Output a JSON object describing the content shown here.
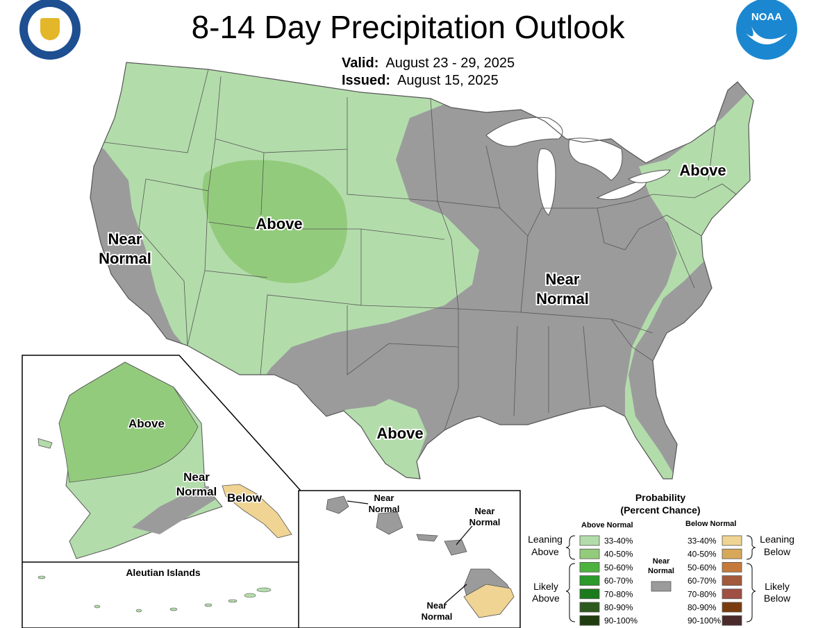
{
  "header": {
    "title": "8-14 Day Precipitation Outlook",
    "valid_label": "Valid:",
    "valid_value": "August 23 - 29, 2025",
    "issued_label": "Issued:",
    "issued_value": "August 15, 2025"
  },
  "logos": {
    "left": "department-of-commerce-seal",
    "right": "noaa-logo",
    "right_text": "NOAA"
  },
  "colors": {
    "near_normal": "#9b9b9c",
    "above_33_40": "#b3dcab",
    "above_40_50": "#93cb7c",
    "below_33_40": "#f0d493",
    "below_40_50": "#d8a85a",
    "border": "#555555"
  },
  "map_labels": {
    "west_coast": [
      "Near",
      "Normal"
    ],
    "rockies": "Above",
    "central_east": [
      "Near",
      "Normal"
    ],
    "northeast": "Above",
    "texas": "Above"
  },
  "alaska": {
    "above": "Above",
    "near_normal": [
      "Near",
      "Normal"
    ],
    "below": "Below",
    "aleutian_title": "Aleutian Islands"
  },
  "hawaii": {
    "kauai_oahu": [
      "Near",
      "Normal"
    ],
    "maui": [
      "Near",
      "Normal"
    ],
    "big_island": [
      "Near",
      "Normal"
    ]
  },
  "legend": {
    "title_line1": "Probability",
    "title_line2": "(Percent Chance)",
    "above_header": "Above Normal",
    "below_header": "Below Normal",
    "near_header": [
      "Near",
      "Normal"
    ],
    "leaning_above": [
      "Leaning",
      "Above"
    ],
    "likely_above": [
      "Likely",
      "Above"
    ],
    "leaning_below": [
      "Leaning",
      "Below"
    ],
    "likely_below": [
      "Likely",
      "Below"
    ],
    "above_bins": [
      {
        "label": "33-40%",
        "color": "#b3dcab"
      },
      {
        "label": "40-50%",
        "color": "#93cb7c"
      },
      {
        "label": "50-60%",
        "color": "#4db33e"
      },
      {
        "label": "60-70%",
        "color": "#2a9a2a"
      },
      {
        "label": "70-80%",
        "color": "#1a7a1c"
      },
      {
        "label": "80-90%",
        "color": "#2c5a1e"
      },
      {
        "label": "90-100%",
        "color": "#1f3d0f"
      }
    ],
    "below_bins": [
      {
        "label": "33-40%",
        "color": "#f0d493"
      },
      {
        "label": "40-50%",
        "color": "#d8a85a"
      },
      {
        "label": "50-60%",
        "color": "#c57a3c"
      },
      {
        "label": "60-70%",
        "color": "#a35a3a"
      },
      {
        "label": "70-80%",
        "color": "#a04f43"
      },
      {
        "label": "80-90%",
        "color": "#7a3c0e"
      },
      {
        "label": "90-100%",
        "color": "#4a2a2a"
      }
    ]
  }
}
